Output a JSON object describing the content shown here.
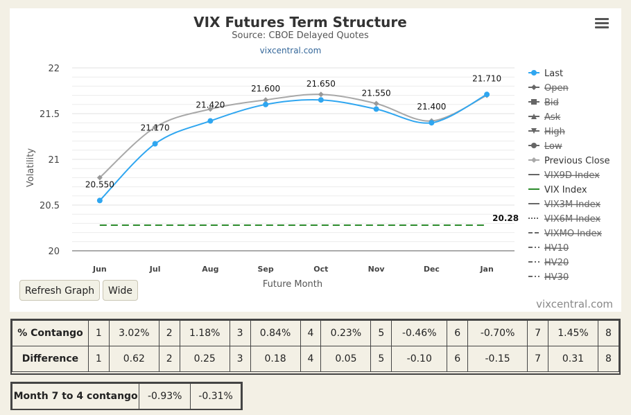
{
  "chart_data": {
    "type": "line",
    "title": "VIX Futures Term Structure",
    "subtitle": "Source: CBOE Delayed Quotes",
    "credit_link": "vixcentral.com",
    "xlabel": "Future Month",
    "ylabel": "Volatility",
    "categories": [
      "Jun",
      "Jul",
      "Aug",
      "Sep",
      "Oct",
      "Nov",
      "Dec",
      "Jan"
    ],
    "ylim": [
      20,
      22
    ],
    "yticks": [
      "20",
      "20.5",
      "21",
      "21.5",
      "22"
    ],
    "ytick_values": [
      20,
      20.5,
      21,
      21.5,
      22
    ],
    "grid": true,
    "legend_position": "right",
    "series": [
      {
        "name": "Last",
        "values": [
          20.55,
          21.17,
          21.42,
          21.6,
          21.65,
          21.55,
          21.4,
          21.71
        ],
        "labels": [
          "20.550",
          "21.170",
          "21.420",
          "21.600",
          "21.650",
          "21.550",
          "21.400",
          "21.710"
        ],
        "color": "#2fa6f0"
      },
      {
        "name": "Previous Close",
        "values": [
          20.8,
          21.35,
          21.55,
          21.65,
          21.71,
          21.61,
          21.42,
          21.7
        ],
        "color": "#a8a8a8"
      },
      {
        "name": "VIX Index",
        "values": [
          20.28,
          20.28,
          20.28,
          20.28,
          20.28,
          20.28,
          20.28,
          20.28
        ],
        "end_label": "20.28",
        "color": "#2a8a2a"
      }
    ],
    "legend": [
      {
        "name": "Last",
        "active": true,
        "marker": "circle-line",
        "color": "#2fa6f0"
      },
      {
        "name": "Open",
        "active": false,
        "marker": "diamond-line",
        "color": "#555555"
      },
      {
        "name": "Bid",
        "active": false,
        "marker": "square-line",
        "color": "#555555"
      },
      {
        "name": "Ask",
        "active": false,
        "marker": "triangle-line",
        "color": "#555555"
      },
      {
        "name": "High",
        "active": false,
        "marker": "triangle-down-line",
        "color": "#555555"
      },
      {
        "name": "Low",
        "active": false,
        "marker": "circle-line",
        "color": "#555555"
      },
      {
        "name": "Previous Close",
        "active": true,
        "marker": "diamond-line",
        "color": "#a8a8a8"
      },
      {
        "name": "VIX9D Index",
        "active": false,
        "marker": "solid-line",
        "color": "#555555"
      },
      {
        "name": "VIX Index",
        "active": true,
        "marker": "solid-line",
        "color": "#2a8a2a"
      },
      {
        "name": "VIX3M Index",
        "active": false,
        "marker": "solid-line",
        "color": "#555555"
      },
      {
        "name": "VIX6M Index",
        "active": false,
        "marker": "dotted-line",
        "color": "#555555"
      },
      {
        "name": "VIXMO Index",
        "active": false,
        "marker": "dashed-line",
        "color": "#555555"
      },
      {
        "name": "HV10",
        "active": false,
        "marker": "dash-dot-line",
        "color": "#555555"
      },
      {
        "name": "HV20",
        "active": false,
        "marker": "dash-dot-line",
        "color": "#555555"
      },
      {
        "name": "HV30",
        "active": false,
        "marker": "dash-dot-line",
        "color": "#555555"
      }
    ]
  },
  "controls": {
    "refresh_label": "Refresh Graph",
    "wide_label": "Wide",
    "watermark": "vixcentral.com",
    "menu_icon": "hamburger-menu-icon"
  },
  "contango_table": {
    "rows": [
      {
        "label": "% Contango",
        "cells": [
          "1",
          "3.02%",
          "2",
          "1.18%",
          "3",
          "0.84%",
          "4",
          "0.23%",
          "5",
          "-0.46%",
          "6",
          "-0.70%",
          "7",
          "1.45%",
          "8"
        ]
      },
      {
        "label": "Difference",
        "cells": [
          "1",
          "0.62",
          "2",
          "0.25",
          "3",
          "0.18",
          "4",
          "0.05",
          "5",
          "-0.10",
          "6",
          "-0.15",
          "7",
          "0.31",
          "8"
        ]
      }
    ]
  },
  "month_table": {
    "label": "Month 7 to 4 contango",
    "values": [
      "-0.93%",
      "-0.31%"
    ]
  }
}
